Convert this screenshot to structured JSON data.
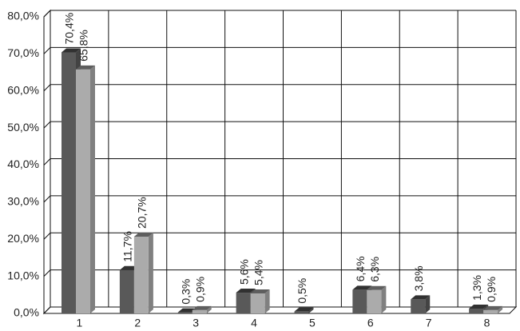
{
  "chart_data": {
    "type": "bar3d",
    "categories": [
      "1",
      "2",
      "3",
      "4",
      "5",
      "6",
      "7",
      "8"
    ],
    "series": [
      {
        "color": "#595959",
        "values": [
          70.4,
          11.7,
          0.3,
          5.6,
          0.5,
          6.4,
          3.8,
          1.3
        ],
        "value_labels": [
          "70,4%",
          "11,7%",
          "0,3%",
          "5,6%",
          "0,5%",
          "6,4%",
          "3,8%",
          "1,3%"
        ]
      },
      {
        "color": "#ababab",
        "values": [
          65.8,
          20.7,
          0.9,
          5.4,
          null,
          6.3,
          null,
          0.9
        ],
        "value_labels": [
          "65,8%",
          "20,7%",
          "0,9%",
          "5,4%",
          null,
          "6,3%",
          null,
          "0,9%"
        ]
      }
    ],
    "ylim": [
      0,
      80
    ],
    "yticks": [
      {
        "value": 0,
        "label": "0,0%"
      },
      {
        "value": 10,
        "label": "10,0%"
      },
      {
        "value": 20,
        "label": "20,0%"
      },
      {
        "value": 30,
        "label": "30,0%"
      },
      {
        "value": 40,
        "label": "40,0%"
      },
      {
        "value": 50,
        "label": "50,0%"
      },
      {
        "value": 60,
        "label": "60,0%"
      },
      {
        "value": 70,
        "label": "70,0%"
      },
      {
        "value": 80,
        "label": "80,0%"
      }
    ],
    "grid": true
  }
}
